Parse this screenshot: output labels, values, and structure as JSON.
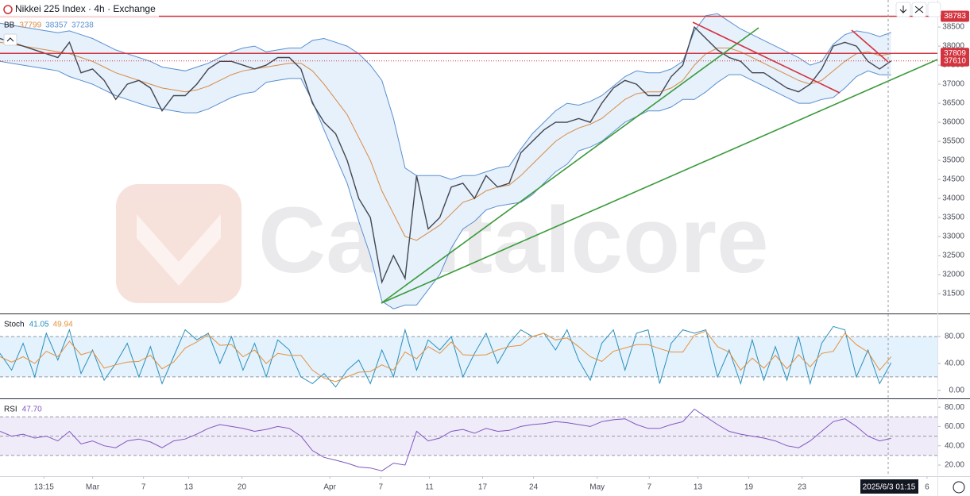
{
  "header": {
    "title": "Nikkei 225 Index · 4h · Exchange"
  },
  "watermark": "Capitalcore",
  "crosshair_label": "2025/6/3  01:15",
  "chart_data": [
    {
      "type": "line",
      "indicator": {
        "label": "BB",
        "values": [
          37799,
          38357,
          37238
        ]
      },
      "x": [
        0,
        1,
        2,
        3,
        4,
        5,
        6,
        7,
        8,
        9,
        10,
        11,
        12,
        13,
        14,
        15,
        16,
        17,
        18,
        19,
        20,
        21,
        22,
        23,
        24,
        25,
        26,
        27,
        28,
        29,
        30,
        31,
        32,
        33,
        34,
        35,
        36,
        37,
        38,
        39,
        40,
        41,
        42,
        43,
        44,
        45,
        46,
        47,
        48,
        49,
        50,
        51,
        52,
        53,
        54,
        55,
        56,
        57,
        58,
        59,
        60,
        61,
        62,
        63,
        64,
        65,
        66,
        67,
        68,
        69,
        70,
        71,
        72,
        73,
        74,
        75,
        76,
        77
      ],
      "xlim": [
        0,
        81
      ],
      "xticks": [
        {
          "value": 3.8,
          "label": "13:15"
        },
        {
          "value": 8.0,
          "label": "Mar"
        },
        {
          "value": 12.4,
          "label": "7"
        },
        {
          "value": 16.3,
          "label": "13"
        },
        {
          "value": 20.9,
          "label": "20"
        },
        {
          "value": 28.5,
          "label": "Apr"
        },
        {
          "value": 32.9,
          "label": "7"
        },
        {
          "value": 37.1,
          "label": "11"
        },
        {
          "value": 41.7,
          "label": "17"
        },
        {
          "value": 46.1,
          "label": "24"
        },
        {
          "value": 51.6,
          "label": "May"
        },
        {
          "value": 56.1,
          "label": "7"
        },
        {
          "value": 60.3,
          "label": "13"
        },
        {
          "value": 64.7,
          "label": "19"
        },
        {
          "value": 69.3,
          "label": "23"
        },
        {
          "value": 80.1,
          "label": "6"
        }
      ],
      "ylim": [
        30980,
        39210
      ],
      "yticks": [
        31500,
        32000,
        32500,
        33000,
        33500,
        34000,
        34500,
        35000,
        35500,
        36000,
        36500,
        37000,
        37500,
        38000,
        38500
      ],
      "grid": false,
      "close": {
        "color": "#434651",
        "values": [
          38200,
          38100,
          38000,
          37900,
          37800,
          37700,
          38100,
          37300,
          37400,
          37100,
          36600,
          37000,
          37100,
          36900,
          36300,
          36700,
          36700,
          37000,
          37400,
          37600,
          37600,
          37500,
          37400,
          37500,
          37700,
          37700,
          37400,
          36500,
          36000,
          35700,
          35000,
          34000,
          33500,
          31800,
          32500,
          31900,
          34600,
          33200,
          33500,
          34300,
          34400,
          34000,
          34600,
          34300,
          34400,
          35200,
          35500,
          35800,
          36000,
          36000,
          36100,
          36000,
          36500,
          36900,
          37100,
          37000,
          36700,
          36700,
          37200,
          37500,
          38500,
          38200,
          37900,
          37700,
          37600,
          37300,
          37300,
          37100,
          36900,
          36800,
          37000,
          37400,
          38000,
          38100,
          38000,
          37600,
          37400,
          37610
        ]
      },
      "bb_basis": {
        "color": "#d98a45",
        "values": [
          38100,
          38050,
          38000,
          37950,
          37900,
          37850,
          37800,
          37700,
          37600,
          37450,
          37300,
          37200,
          37100,
          37000,
          36900,
          36850,
          36800,
          36850,
          36950,
          37100,
          37250,
          37350,
          37400,
          37450,
          37500,
          37550,
          37550,
          37350,
          37000,
          36600,
          36200,
          35600,
          35000,
          34200,
          33600,
          33000,
          32900,
          33100,
          33300,
          33600,
          33900,
          34000,
          34200,
          34300,
          34350,
          34600,
          34900,
          35200,
          35500,
          35700,
          35850,
          35950,
          36100,
          36350,
          36600,
          36750,
          36800,
          36800,
          36900,
          37100,
          37500,
          37800,
          37950,
          37950,
          37850,
          37700,
          37550,
          37400,
          37250,
          37100,
          37000,
          37100,
          37350,
          37600,
          37800,
          37850,
          37750,
          37799
        ]
      },
      "bb_upper": {
        "color": "#5a8fd0",
        "values": [
          38600,
          38550,
          38500,
          38450,
          38400,
          38350,
          38400,
          38300,
          38200,
          38050,
          37900,
          37800,
          37700,
          37600,
          37450,
          37400,
          37350,
          37450,
          37550,
          37700,
          37850,
          37950,
          38000,
          37850,
          37900,
          37950,
          37950,
          38150,
          38200,
          38100,
          38000,
          37800,
          37500,
          37100,
          36100,
          34800,
          34600,
          34600,
          34600,
          34500,
          34600,
          34600,
          34700,
          34800,
          34850,
          35300,
          35700,
          36000,
          36300,
          36500,
          36450,
          36550,
          36700,
          36950,
          37200,
          37350,
          37300,
          37300,
          37400,
          37600,
          38400,
          38800,
          38850,
          38650,
          38450,
          38300,
          38150,
          38000,
          37850,
          37700,
          37500,
          37600,
          38050,
          38300,
          38400,
          38350,
          38250,
          38357
        ]
      },
      "bb_lower": {
        "color": "#5a8fd0",
        "values": [
          37600,
          37550,
          37500,
          37450,
          37400,
          37350,
          37200,
          37100,
          37000,
          36850,
          36700,
          36600,
          36500,
          36400,
          36350,
          36300,
          36250,
          36250,
          36350,
          36500,
          36650,
          36750,
          36800,
          37050,
          37100,
          37150,
          37150,
          36550,
          35800,
          35100,
          34400,
          33400,
          32500,
          31300,
          31100,
          31200,
          31200,
          31600,
          32000,
          32700,
          33200,
          33400,
          33700,
          33800,
          33850,
          33900,
          34100,
          34400,
          34700,
          34900,
          35250,
          35350,
          35500,
          35750,
          36000,
          36150,
          36300,
          36300,
          36400,
          36600,
          36600,
          36800,
          37050,
          37250,
          37250,
          37100,
          36950,
          36800,
          36650,
          36500,
          36500,
          36600,
          36650,
          36900,
          37200,
          37350,
          37250,
          37238
        ]
      },
      "band_fill": "#e6f1fb",
      "hlines": [
        38783,
        37809,
        37610
      ],
      "hline_color": "#d3333f"
    },
    {
      "type": "line",
      "indicator": {
        "label": "Stoch",
        "values": [
          41.05,
          49.94
        ]
      },
      "ylim": [
        -12,
        112
      ],
      "yticks": [
        {
          "value": 0,
          "label": "0.00"
        },
        {
          "value": 40,
          "label": "40.00"
        },
        {
          "value": 80,
          "label": "80.00"
        }
      ],
      "bands": [
        20,
        80
      ],
      "band_fill": "#e3f2fd",
      "series": [
        {
          "color": "#2a8fbd",
          "values": [
            55,
            30,
            70,
            20,
            85,
            45,
            90,
            25,
            60,
            15,
            40,
            70,
            20,
            65,
            10,
            50,
            90,
            75,
            85,
            40,
            80,
            30,
            70,
            20,
            75,
            60,
            20,
            10,
            25,
            5,
            30,
            45,
            10,
            60,
            20,
            90,
            30,
            75,
            60,
            80,
            20,
            55,
            85,
            40,
            70,
            90,
            80,
            85,
            60,
            90,
            45,
            15,
            70,
            90,
            30,
            85,
            90,
            10,
            70,
            90,
            85,
            90,
            20,
            60,
            10,
            75,
            15,
            65,
            15,
            80,
            10,
            70,
            95,
            90,
            20,
            60,
            10,
            41.05
          ]
        },
        {
          "color": "#e8913b",
          "values": [
            50,
            42,
            50,
            40,
            58,
            50,
            73,
            53,
            58,
            33,
            38,
            42,
            43,
            52,
            32,
            42,
            63,
            72,
            83,
            67,
            68,
            50,
            60,
            40,
            55,
            52,
            52,
            30,
            18,
            13,
            20,
            27,
            28,
            38,
            30,
            57,
            47,
            65,
            55,
            72,
            53,
            52,
            53,
            60,
            65,
            67,
            80,
            85,
            75,
            78,
            65,
            50,
            43,
            58,
            63,
            68,
            68,
            62,
            57,
            57,
            82,
            88,
            65,
            57,
            30,
            48,
            33,
            52,
            32,
            53,
            35,
            55,
            58,
            85,
            68,
            57,
            30,
            49.94
          ]
        }
      ]
    },
    {
      "type": "line",
      "indicator": {
        "label": "RSI",
        "values": [
          {
            "value": 47.7,
            "label": "47.70"
          }
        ]
      },
      "ylim": [
        8.5,
        87.5
      ],
      "yticks": [
        {
          "value": 20,
          "label": "20.00"
        },
        {
          "value": 40,
          "label": "40.00"
        },
        {
          "value": 60,
          "label": "60.00"
        },
        {
          "value": 80,
          "label": "80.00"
        }
      ],
      "bands": [
        30,
        50,
        70
      ],
      "band_fill": "#f0ebf8",
      "series": [
        {
          "color": "#7e57c2",
          "values": [
            55,
            50,
            52,
            48,
            50,
            45,
            55,
            42,
            45,
            40,
            38,
            45,
            47,
            44,
            38,
            45,
            47,
            52,
            58,
            62,
            60,
            58,
            55,
            57,
            60,
            58,
            50,
            35,
            28,
            25,
            22,
            18,
            17,
            14,
            22,
            20,
            55,
            45,
            48,
            55,
            57,
            53,
            58,
            55,
            56,
            60,
            62,
            63,
            65,
            64,
            62,
            60,
            65,
            67,
            68,
            62,
            58,
            58,
            62,
            65,
            78,
            70,
            62,
            55,
            52,
            50,
            48,
            45,
            40,
            38,
            45,
            55,
            65,
            68,
            60,
            50,
            45,
            47.7
          ]
        }
      ]
    }
  ]
}
